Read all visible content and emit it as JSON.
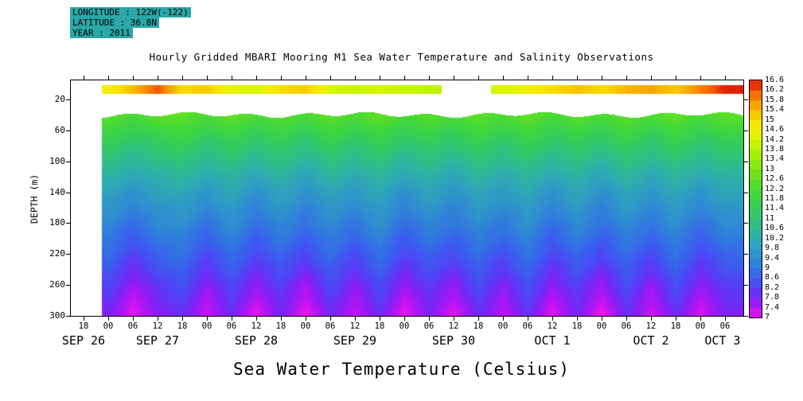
{
  "meta": {
    "longitude": "LONGITUDE : 122W(-122)",
    "latitude": "LATITUDE : 36.8N",
    "year": "YEAR : 2011"
  },
  "title": "Hourly Gridded MBARI Mooring M1 Sea Water Temperature and Salinity Observations",
  "footer_title": "Sea Water Temperature (Celsius)",
  "colors": {
    "meta_highlight": "#2aa7a7",
    "frame": "#000000",
    "background": "#ffffff"
  },
  "y_axis": {
    "label": "DEPTH (m)",
    "ticks": [
      20,
      60,
      100,
      140,
      180,
      220,
      260,
      300
    ]
  },
  "x_axis": {
    "hour_ticks": [
      "18",
      "00",
      "06",
      "12",
      "18",
      "00",
      "06",
      "12",
      "18",
      "00",
      "06",
      "12",
      "18",
      "00",
      "06",
      "12",
      "18",
      "00",
      "06",
      "12",
      "18",
      "00",
      "06",
      "12",
      "18",
      "00",
      "06"
    ],
    "date_labels": [
      {
        "label": "SEP 26",
        "col": 0
      },
      {
        "label": "SEP 27",
        "col": 3
      },
      {
        "label": "SEP 28",
        "col": 7
      },
      {
        "label": "SEP 29",
        "col": 11
      },
      {
        "label": "SEP 30",
        "col": 15
      },
      {
        "label": "OCT 1",
        "col": 19
      },
      {
        "label": "OCT 2",
        "col": 23
      },
      {
        "label": "OCT 3",
        "col": 25.9
      }
    ]
  },
  "colorbar": {
    "labels": [
      "7",
      "7.4",
      "7.8",
      "8.2",
      "8.6",
      "9",
      "9.4",
      "9.8",
      "10.2",
      "10.6",
      "11",
      "11.4",
      "11.8",
      "12.2",
      "12.6",
      "13",
      "13.4",
      "13.8",
      "14.2",
      "14.6",
      "15",
      "15.4",
      "15.8",
      "16.2",
      "16.6"
    ]
  },
  "chart_data": {
    "type": "heatmap",
    "x_unit": "time, 6-hour columns",
    "x_start": "SEP 26 18:00 2011",
    "x_end": "OCT 3 ~09:00 2011",
    "y_unit": "depth (m)",
    "value_unit": "sea water temperature (Celsius)",
    "value_range": [
      7,
      16.6
    ],
    "surface_strip": {
      "depth_range_m": [
        2,
        12
      ],
      "temps_by_column": [
        null,
        14.6,
        15.4,
        16.2,
        15.0,
        15.2,
        14.4,
        14.2,
        15.0,
        15.2,
        14.2,
        14.0,
        14.2,
        14.0,
        13.9,
        null,
        null,
        14.2,
        14.6,
        15.0,
        15.3,
        15.0,
        15.4,
        15.6,
        15.2,
        15.9,
        16.5
      ]
    },
    "body": {
      "data_start_col": 0.74,
      "top_depth_m": 40,
      "depths_m": [
        40,
        60,
        80,
        100,
        120,
        140,
        160,
        180,
        200,
        220,
        240,
        260,
        280,
        305
      ],
      "mean_profile_c": [
        12.4,
        11.8,
        11.2,
        10.7,
        10.2,
        9.8,
        9.5,
        9.2,
        8.9,
        8.6,
        8.3,
        8.0,
        7.75,
        7.45
      ],
      "tidal_amplitude_c": [
        0.25,
        0.25,
        0.3,
        0.3,
        0.3,
        0.3,
        0.3,
        0.3,
        0.32,
        0.35,
        0.4,
        0.45,
        0.5,
        0.55
      ],
      "tidal_wave_by_column": [
        -0.8,
        0.6,
        -1.0,
        0.3,
        0.9,
        -0.7,
        0.8,
        -0.9,
        0.5,
        -1.0,
        0.7,
        -0.6,
        0.9,
        -1.0,
        0.4,
        -0.8,
        0.8,
        -0.5,
        1.0,
        -0.9,
        0.6,
        -1.0,
        0.8,
        -0.7,
        0.9,
        -0.8,
        0.5
      ]
    },
    "colormap": {
      "levels": [
        7,
        7.4,
        7.8,
        8.2,
        8.6,
        9,
        9.4,
        9.8,
        10.2,
        10.6,
        11,
        11.4,
        11.8,
        12.2,
        12.6,
        13,
        13.4,
        13.8,
        14.2,
        14.6,
        15,
        15.4,
        15.8,
        16.2,
        16.6
      ],
      "colors": [
        "#ee14ee",
        "#b414f4",
        "#7e22f6",
        "#5440f6",
        "#3c5cf0",
        "#3276e2",
        "#2f8cd2",
        "#2e9ec2",
        "#2eadae",
        "#2eba94",
        "#30c478",
        "#34cc5e",
        "#3cd447",
        "#4ada34",
        "#5ee024",
        "#78e616",
        "#96ec0a",
        "#b6f200",
        "#d6f600",
        "#f2f200",
        "#f8dc00",
        "#f8b800",
        "#f88e00",
        "#f45800",
        "#d81000"
      ]
    }
  }
}
